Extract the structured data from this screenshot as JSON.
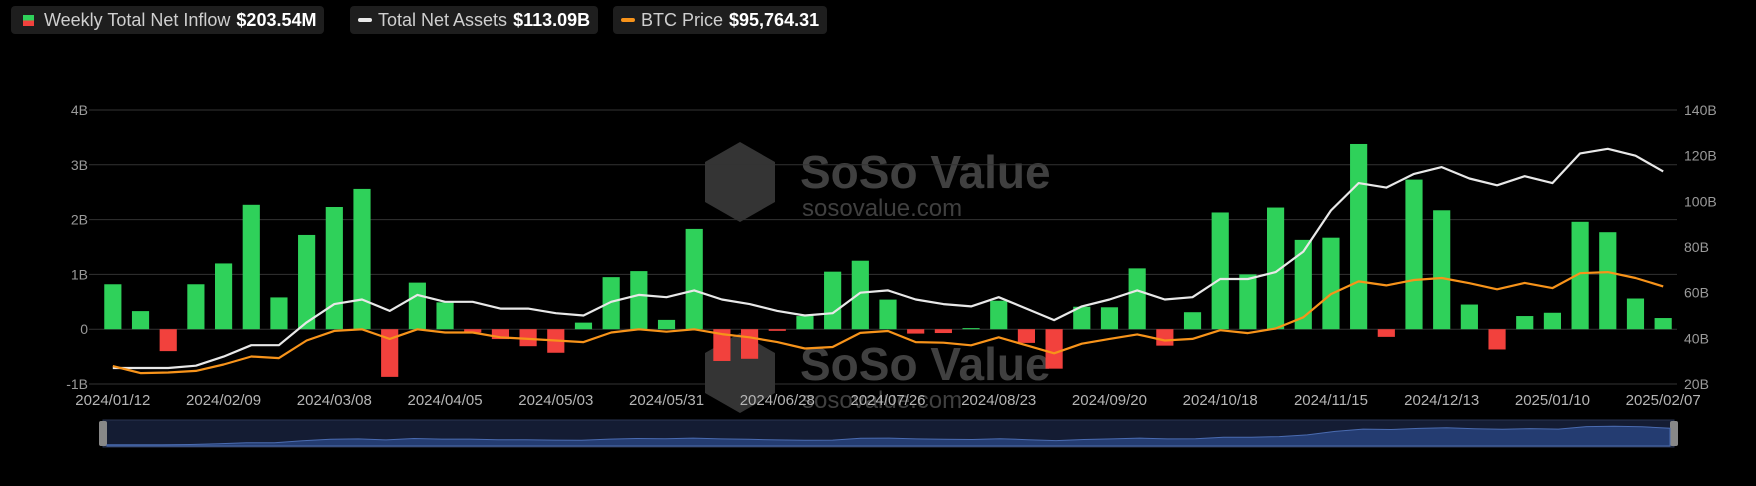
{
  "chart_data": {
    "type": "bar-line",
    "legend_position": "top-left",
    "watermark": {
      "name": "SoSo Value",
      "url": "sosovalue.com"
    },
    "categories": [
      "2024/01/12",
      null,
      null,
      null,
      "2024/02/09",
      null,
      null,
      null,
      "2024/03/08",
      null,
      null,
      null,
      "2024/04/05",
      null,
      null,
      null,
      "2024/05/03",
      null,
      null,
      null,
      "2024/05/31",
      null,
      null,
      null,
      "2024/06/28",
      null,
      null,
      null,
      "2024/07/26",
      null,
      null,
      null,
      "2024/08/23",
      null,
      null,
      null,
      "2024/09/20",
      null,
      null,
      null,
      "2024/10/18",
      null,
      null,
      null,
      "2024/11/15",
      null,
      null,
      null,
      "2024/12/13",
      null,
      null,
      null,
      "2025/01/10",
      null,
      null,
      null,
      "2025/02/07"
    ],
    "series": [
      {
        "name": "Weekly Total Net Inflow",
        "legend_value": "$203.54M",
        "color": "#2fd15a",
        "negative_color": "#f2413d",
        "kind": "bar",
        "axis": "y",
        "values": [
          0.82,
          0.33,
          -0.4,
          0.82,
          1.2,
          2.27,
          0.58,
          1.72,
          2.23,
          2.56,
          -0.87,
          0.85,
          0.49,
          -0.06,
          -0.18,
          -0.31,
          -0.43,
          0.12,
          0.95,
          1.06,
          0.17,
          1.83,
          -0.58,
          -0.54,
          -0.03,
          0.24,
          1.05,
          1.25,
          0.54,
          -0.08,
          -0.07,
          0.02,
          0.52,
          -0.25,
          -0.72,
          0.41,
          0.4,
          1.11,
          -0.3,
          0.31,
          2.13,
          1.0,
          2.22,
          1.63,
          1.67,
          3.38,
          -0.14,
          2.73,
          2.17,
          0.45,
          -0.37,
          0.24,
          0.3,
          1.96,
          1.77,
          0.56,
          0.20354
        ]
      },
      {
        "name": "Total Net Assets",
        "legend_value": "$113.09B",
        "color": "#e8e8e8",
        "kind": "line",
        "axis": "y2",
        "values": [
          27,
          27,
          27,
          28,
          32,
          37,
          37,
          47,
          55,
          57,
          52,
          59,
          56,
          56,
          53,
          53,
          51,
          50,
          56,
          59,
          58,
          61,
          57,
          55,
          52,
          50,
          51,
          60,
          61,
          57,
          55,
          54,
          58,
          53,
          48,
          54,
          57,
          61,
          57,
          58,
          66,
          66,
          69,
          78,
          96,
          108,
          106,
          112,
          115,
          110,
          107,
          111,
          108,
          121,
          123,
          120,
          113.09
        ]
      },
      {
        "name": "BTC Price",
        "legend_value": "$95,764.31",
        "color": "#f7931a",
        "kind": "line",
        "axis": "y3",
        "values": [
          46000,
          41600,
          42000,
          43000,
          47000,
          52000,
          51000,
          62000,
          68000,
          69000,
          63000,
          69000,
          67000,
          67000,
          64000,
          63000,
          62000,
          61000,
          67000,
          69000,
          67500,
          69000,
          66000,
          64000,
          61000,
          57000,
          57900,
          66700,
          67900,
          61000,
          60600,
          59000,
          64000,
          59000,
          54000,
          60000,
          63000,
          65800,
          62000,
          63000,
          68400,
          66600,
          69500,
          76500,
          91000,
          98900,
          96400,
          99800,
          101000,
          97800,
          94000,
          98000,
          94700,
          104000,
          104700,
          101000,
          95764.31
        ]
      }
    ],
    "ylim": [
      -1,
      4
    ],
    "yticks": [
      {
        "value": -1,
        "label": "-1B"
      },
      0,
      {
        "value": 1,
        "label": "1B"
      },
      {
        "value": 2,
        "label": "2B"
      },
      {
        "value": 3,
        "label": "3B"
      },
      {
        "value": 4,
        "label": "4B"
      }
    ],
    "y2lim": [
      20,
      140
    ],
    "y2ticks": [
      {
        "value": 20,
        "label": "20B"
      },
      {
        "value": 40,
        "label": "40B"
      },
      {
        "value": 60,
        "label": "60B"
      },
      {
        "value": 80,
        "label": "80B"
      },
      {
        "value": 100,
        "label": "100B"
      },
      {
        "value": 120,
        "label": "120B"
      },
      {
        "value": 140,
        "label": "140B"
      }
    ],
    "y3lim": [
      34800,
      206000
    ],
    "grid": true
  }
}
